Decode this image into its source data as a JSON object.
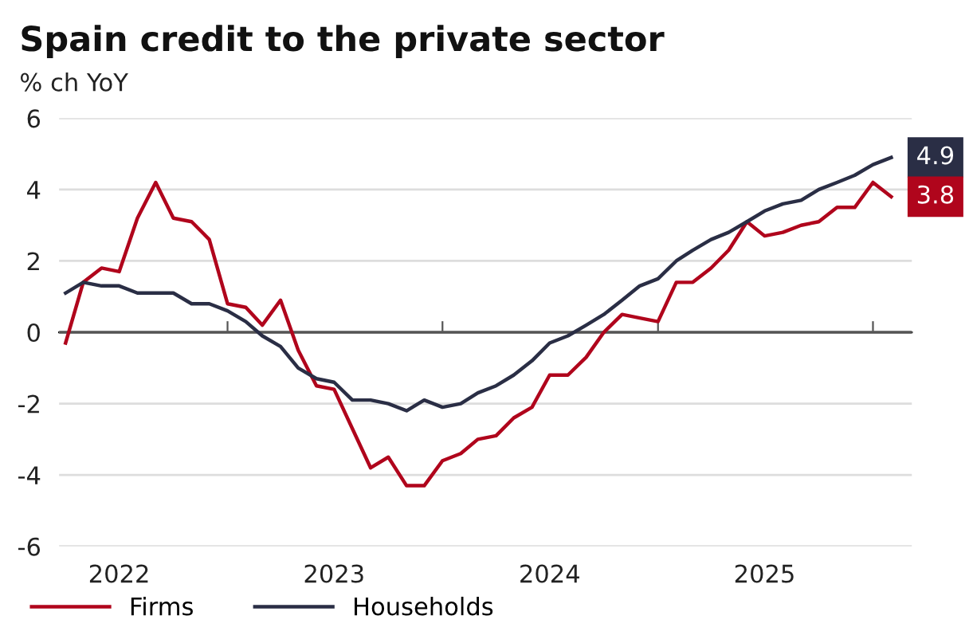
{
  "chart_data": {
    "type": "line",
    "title": "Spain credit to the private sector",
    "subtitle": "% ch YoY",
    "x": [
      "2022-04",
      "2022-05",
      "2022-06",
      "2022-07",
      "2022-08",
      "2022-09",
      "2022-10",
      "2022-11",
      "2022-12",
      "2023-01",
      "2023-02",
      "2023-03",
      "2023-04",
      "2023-05",
      "2023-06",
      "2023-07",
      "2023-08",
      "2023-09",
      "2023-10",
      "2023-11",
      "2023-12",
      "2024-01",
      "2024-02",
      "2024-03",
      "2024-04",
      "2024-05",
      "2024-06",
      "2024-07",
      "2024-08",
      "2024-09",
      "2024-10",
      "2024-11",
      "2024-12",
      "2025-01",
      "2025-02",
      "2025-03",
      "2025-04",
      "2025-05",
      "2025-06",
      "2025-07",
      "2025-08",
      "2025-09",
      "2025-10",
      "2025-11",
      "2025-12",
      "2026-01",
      "2026-02"
    ],
    "series": [
      {
        "name": "Firms",
        "color": "#b0051c",
        "values": [
          -0.3,
          1.4,
          1.8,
          1.7,
          3.2,
          4.2,
          3.2,
          3.1,
          2.6,
          0.8,
          0.7,
          0.2,
          0.9,
          -0.5,
          -1.5,
          -1.6,
          -2.7,
          -3.8,
          -3.5,
          -4.3,
          -4.3,
          -3.6,
          -3.4,
          -3.0,
          -2.9,
          -2.4,
          -2.1,
          -1.2,
          -1.2,
          -0.7,
          0.0,
          0.5,
          0.4,
          0.3,
          1.4,
          1.4,
          1.8,
          2.3,
          3.1,
          2.7,
          2.8,
          3.0,
          3.1,
          3.5,
          3.5,
          4.2,
          3.8
        ],
        "value_labels": [
          null,
          null,
          null,
          null,
          null,
          null,
          null,
          null,
          null,
          null,
          null,
          null,
          null,
          null,
          null,
          null,
          null,
          null,
          null,
          null,
          null,
          null,
          null,
          null,
          null,
          null,
          null,
          null,
          null,
          null,
          null,
          null,
          null,
          null,
          null,
          null,
          null,
          null,
          null,
          null,
          null,
          null,
          null,
          null,
          null,
          null,
          "3.8"
        ]
      },
      {
        "name": "Households",
        "color": "#2a2e45",
        "values": [
          1.1,
          1.4,
          1.3,
          1.3,
          1.1,
          1.1,
          1.1,
          0.8,
          0.8,
          0.6,
          0.3,
          -0.1,
          -0.4,
          -1.0,
          -1.3,
          -1.4,
          -1.9,
          -1.9,
          -2.0,
          -2.2,
          -1.9,
          -2.1,
          -2.0,
          -1.7,
          -1.5,
          -1.2,
          -0.8,
          -0.3,
          -0.1,
          0.2,
          0.5,
          0.9,
          1.3,
          1.5,
          2.0,
          2.3,
          2.6,
          2.8,
          3.1,
          3.4,
          3.6,
          3.7,
          4.0,
          4.2,
          4.4,
          4.7,
          4.9
        ],
        "value_labels": [
          null,
          null,
          null,
          null,
          null,
          null,
          null,
          null,
          null,
          null,
          null,
          null,
          null,
          null,
          null,
          null,
          null,
          null,
          null,
          null,
          null,
          null,
          null,
          null,
          null,
          null,
          null,
          null,
          null,
          null,
          null,
          null,
          null,
          null,
          null,
          null,
          null,
          null,
          null,
          null,
          null,
          null,
          null,
          null,
          null,
          null,
          "4.9"
        ]
      }
    ],
    "xlim": [
      "2022-03-21",
      "2026-03-08"
    ],
    "xticks": [
      {
        "value": "2022-07-01",
        "label": "2022"
      },
      {
        "value": "2023-07-01",
        "label": "2023"
      },
      {
        "value": "2024-07-01",
        "label": "2024"
      },
      {
        "value": "2025-07-01",
        "label": "2025"
      },
      {
        "value": "2023-01-01",
        "label": null
      },
      {
        "value": "2024-01-01",
        "label": null
      },
      {
        "value": "2025-01-01",
        "label": null
      },
      {
        "value": "2026-01-01",
        "label": null
      }
    ],
    "ylim": [
      -6,
      6
    ],
    "yticks": [
      -6,
      -4,
      -2,
      0,
      2,
      4,
      6
    ],
    "ref_lines": [
      {
        "axis": "y",
        "value": 0,
        "label": null,
        "color": "#555555"
      }
    ],
    "grid": "y",
    "legend": "bottom left",
    "marker": "none",
    "line_style": "solid"
  }
}
